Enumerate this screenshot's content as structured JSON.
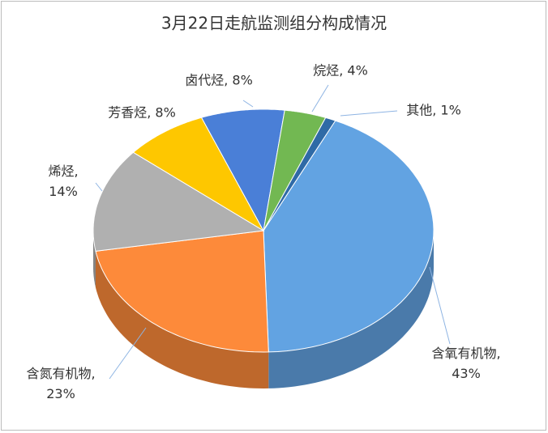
{
  "chart_data": {
    "type": "pie",
    "title": "3月22日走航监测组分构成情况",
    "values": [
      43,
      23,
      14,
      8,
      8,
      4,
      1
    ],
    "value_labels": [
      "含氧有机物, 43%",
      "含氮有机物, 23%",
      "烯烃, 14%",
      "芳香烃, 8%",
      "卤代烃, 8%",
      "烷烃, 4%",
      "其他, 1%"
    ],
    "colors": [
      "#62a3e2",
      "#fd8a3a",
      "#b0b0b0",
      "#fec700",
      "#4a7fd7",
      "#72b852",
      "#2f6aa6"
    ]
  }
}
